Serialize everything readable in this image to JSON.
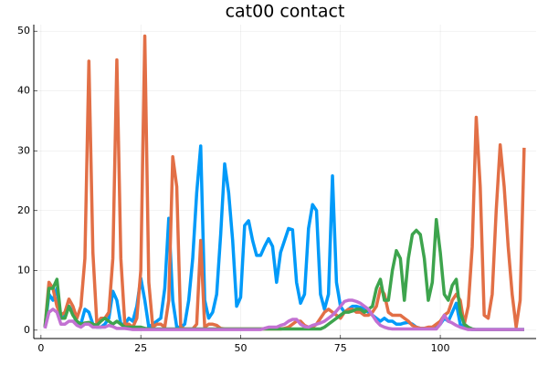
{
  "chart_data": {
    "type": "line",
    "title": "cat00 contact",
    "x": [
      1,
      2,
      3,
      4,
      5,
      6,
      7,
      8,
      9,
      10,
      11,
      12,
      13,
      14,
      15,
      16,
      17,
      18,
      19,
      20,
      21,
      22,
      23,
      24,
      25,
      26,
      27,
      28,
      29,
      30,
      31,
      32,
      33,
      34,
      35,
      36,
      37,
      38,
      39,
      40,
      41,
      42,
      43,
      44,
      45,
      46,
      47,
      48,
      49,
      50,
      51,
      52,
      53,
      54,
      55,
      56,
      57,
      58,
      59,
      60,
      61,
      62,
      63,
      64,
      65,
      66,
      67,
      68,
      69,
      70,
      71,
      72,
      73,
      74,
      75,
      76,
      77,
      78,
      79,
      80,
      81,
      82,
      83,
      84,
      85,
      86,
      87,
      88,
      89,
      90,
      91,
      92,
      93,
      94,
      95,
      96,
      97,
      98,
      99,
      100,
      101,
      102,
      103,
      104,
      105,
      106,
      107,
      108,
      109,
      110,
      111,
      112,
      113,
      114,
      115,
      116,
      117,
      118,
      119,
      120,
      121
    ],
    "series": [
      {
        "color": "#009af9",
        "values": [
          0.5,
          6,
          5,
          7,
          2,
          3,
          4,
          3,
          1,
          1,
          3.5,
          3,
          1,
          0.5,
          0.5,
          1,
          2,
          6.5,
          5,
          1,
          1,
          2,
          1.5,
          4,
          8.7,
          5,
          0.5,
          1,
          1.5,
          2,
          7,
          18.7,
          5,
          0.5,
          0.5,
          1,
          5,
          12,
          23,
          30.8,
          5,
          2,
          3,
          6,
          16,
          27.8,
          23,
          15,
          4,
          5.5,
          17.5,
          18.3,
          15,
          12.5,
          12.5,
          14,
          15.3,
          14,
          8,
          13,
          15,
          17,
          16.8,
          8,
          4.5,
          6,
          17,
          21,
          20,
          6,
          3.5,
          6,
          25.8,
          8,
          4,
          3,
          3.5,
          4,
          4,
          3.8,
          3.5,
          3,
          2.5,
          2,
          1.5,
          2,
          1.5,
          1.5,
          1,
          1,
          1.2,
          1.3,
          1,
          0.5,
          0.3,
          0.3,
          0.3,
          0.3,
          0.5,
          1,
          2,
          1.5,
          3,
          4.5,
          1,
          0.5,
          0.2,
          0.1,
          0.1,
          0.1,
          0.1,
          0.1,
          0.1,
          0.1,
          0.1,
          0.1,
          0.1,
          0.1,
          0.1,
          0.1,
          0.1
        ]
      },
      {
        "color": "#e26f46",
        "values": [
          0.5,
          8,
          7,
          4,
          2.5,
          3,
          5.2,
          4,
          2,
          4,
          12,
          45,
          13,
          1,
          2,
          2,
          3,
          12,
          45.2,
          12,
          1,
          1,
          0.5,
          2,
          10,
          49.2,
          8,
          0.5,
          1,
          1,
          0.5,
          5,
          29,
          24,
          0.5,
          0.2,
          0.2,
          0.2,
          1,
          15,
          0.5,
          1,
          1,
          0.8,
          0.3,
          0.2,
          0.2,
          0.2,
          0.2,
          0.2,
          0.2,
          0.2,
          0.2,
          0.2,
          0.2,
          0.2,
          0.2,
          0.2,
          0.2,
          0.2,
          0.3,
          0.5,
          1,
          1.5,
          1.5,
          0.8,
          0.5,
          0.5,
          1,
          2,
          3,
          3.5,
          3,
          2.5,
          2,
          3,
          3.5,
          3.5,
          3,
          3,
          2.5,
          2.5,
          3,
          4,
          7,
          6,
          3,
          2.5,
          2.5,
          2.5,
          2,
          1.5,
          0.8,
          0.5,
          0.3,
          0.3,
          0.5,
          0.5,
          1,
          1.5,
          2.5,
          3,
          5,
          6,
          5,
          1,
          4,
          14,
          35.6,
          24,
          2.5,
          2,
          6,
          20,
          31,
          24,
          14,
          6,
          0.5,
          5,
          30.5
        ]
      },
      {
        "color": "#3da44d",
        "values": [
          0.5,
          7,
          7,
          8.5,
          2,
          2,
          4,
          2.5,
          1.5,
          1,
          1.2,
          1.3,
          1,
          0.8,
          1.5,
          2,
          1.5,
          1,
          1.5,
          1,
          0.5,
          0.5,
          0.5,
          0.5,
          0.5,
          0.3,
          0.2,
          0.2,
          0.2,
          0.2,
          0.2,
          0.2,
          0.2,
          0.2,
          0.2,
          0.2,
          0.2,
          0.2,
          0.2,
          0.2,
          0.2,
          0.2,
          0.2,
          0.2,
          0.2,
          0.2,
          0.2,
          0.2,
          0.2,
          0.2,
          0.2,
          0.2,
          0.2,
          0.2,
          0.2,
          0.2,
          0.2,
          0.2,
          0.2,
          0.2,
          0.2,
          0.2,
          0.2,
          0.2,
          0.2,
          0.2,
          0.2,
          0.2,
          0.2,
          0.2,
          0.5,
          1,
          1.5,
          2,
          2.5,
          3,
          3,
          3.2,
          3.5,
          3.5,
          3,
          3.5,
          4,
          7,
          8.5,
          5,
          5,
          10,
          13.3,
          12,
          5,
          12,
          16,
          16.7,
          16,
          12,
          5,
          8,
          18.5,
          13,
          6,
          5,
          7.5,
          8.5,
          3,
          1,
          0.5,
          0.2,
          0.1,
          0.1,
          0.1,
          0.1,
          0.1,
          0.1,
          0.1,
          0.1,
          0.1,
          0.1,
          0.1,
          0.1,
          0.1
        ]
      },
      {
        "color": "#c271d2",
        "values": [
          0.3,
          3,
          3.5,
          3,
          1,
          1,
          1.5,
          1.5,
          0.8,
          0.5,
          1,
          1,
          0.5,
          0.5,
          0.5,
          0.5,
          0.8,
          0.6,
          0.3,
          0.3,
          0.3,
          0.2,
          0.1,
          0.1,
          0.1,
          0.1,
          0.1,
          0.1,
          0.1,
          0.1,
          0.1,
          0.1,
          0.1,
          0.1,
          0.1,
          0.1,
          0.1,
          0.1,
          0.1,
          0.1,
          0.1,
          0.1,
          0.1,
          0.1,
          0.1,
          0.1,
          0.1,
          0.1,
          0.1,
          0.1,
          0.1,
          0.1,
          0.1,
          0.1,
          0.1,
          0.3,
          0.5,
          0.5,
          0.5,
          0.8,
          1,
          1.5,
          1.8,
          1.8,
          1,
          0.6,
          0.5,
          0.8,
          1,
          1.2,
          1.5,
          2,
          2.5,
          3.2,
          4,
          4.8,
          5,
          5,
          4.8,
          4.5,
          4,
          3.5,
          2.5,
          1.5,
          0.8,
          0.5,
          0.3,
          0.2,
          0.2,
          0.2,
          0.2,
          0.2,
          0.2,
          0.2,
          0.2,
          0.2,
          0.2,
          0.2,
          0.2,
          1,
          2.5,
          1.5,
          1.2,
          0.8,
          0.5,
          0.3,
          0.1,
          0.1,
          0.1,
          0.1,
          0.1,
          0.1,
          0.1,
          0.1,
          0.1,
          0.1,
          0.1,
          0.1,
          0.1,
          0.1,
          0.1
        ]
      }
    ],
    "xlim": [
      -1.8,
      124
    ],
    "xticks": [
      0,
      25,
      50,
      75,
      100
    ],
    "ylim": [
      -1.4,
      51.1
    ],
    "yticks": [
      0,
      10,
      20,
      30,
      40,
      50
    ],
    "grid": true
  }
}
